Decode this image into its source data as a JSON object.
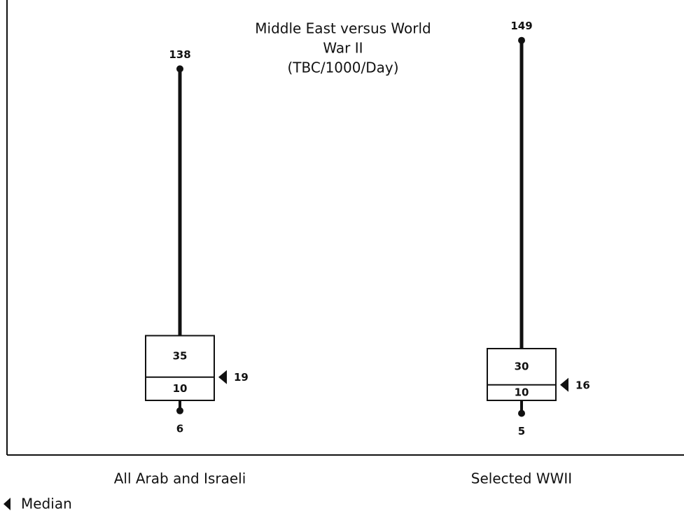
{
  "chart_data": {
    "type": "box",
    "title": [
      "Middle East versus World",
      "War II",
      "(TBC/1000/Day)"
    ],
    "categories": [
      "All Arab and Israeli",
      "Selected WWII"
    ],
    "boxes": [
      {
        "min": 6,
        "q1": 10,
        "median": 19,
        "q3": 35,
        "max": 138
      },
      {
        "min": 5,
        "q1": 10,
        "median": 16,
        "q3": 30,
        "max": 149
      }
    ],
    "legend_label": "Median",
    "color": "#111111"
  }
}
